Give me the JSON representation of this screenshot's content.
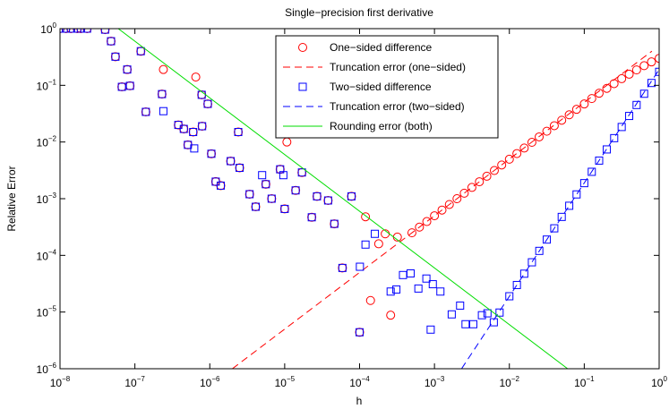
{
  "chart_data": {
    "type": "scatter",
    "title": "Single−precision first derivative",
    "xlabel": "h",
    "ylabel": "Relative Error",
    "xscale": "log",
    "yscale": "log",
    "grid": false,
    "legend": "north",
    "xlim": [
      1e-08,
      1
    ],
    "ylim": [
      1e-06,
      1
    ],
    "xticks": [
      {
        "value": 1e-08,
        "label": "10^-8"
      },
      {
        "value": 1e-07,
        "label": "10^-7"
      },
      {
        "value": 1e-06,
        "label": "10^-6"
      },
      {
        "value": 1e-05,
        "label": "10^-5"
      },
      {
        "value": 0.0001,
        "label": "10^-4"
      },
      {
        "value": 0.001,
        "label": "10^-3"
      },
      {
        "value": 0.01,
        "label": "10^-2"
      },
      {
        "value": 0.1,
        "label": "10^-1"
      },
      {
        "value": 1,
        "label": "10^0"
      }
    ],
    "yticks": [
      {
        "value": 1e-06,
        "label": "10^-6"
      },
      {
        "value": 1e-05,
        "label": "10^-5"
      },
      {
        "value": 0.0001,
        "label": "10^-4"
      },
      {
        "value": 0.001,
        "label": "10^-3"
      },
      {
        "value": 0.01,
        "label": "10^-2"
      },
      {
        "value": 0.1,
        "label": "10^-1"
      },
      {
        "value": 1,
        "label": "10^0"
      }
    ],
    "series": [
      {
        "name": "One−sided difference",
        "color": "#ff0000",
        "style": "circle",
        "x": [
          1e-08,
          1.2e-08,
          1.4e-08,
          1.7e-08,
          1.9e-08,
          2.3e-08,
          4e-08,
          4.8e-08,
          5.5e-08,
          6.7e-08,
          7.9e-08,
          8.6e-08,
          1.2e-07,
          1.4e-07,
          2.3e-07,
          2.4e-07,
          3.8e-07,
          4.5e-07,
          5.1e-07,
          6e-07,
          6.5e-07,
          7.8e-07,
          7.9e-07,
          9.4e-07,
          1.05e-06,
          1.2e-06,
          1.4e-06,
          1.9e-06,
          2.4e-06,
          2.5e-06,
          3.4e-06,
          4.1e-06,
          5.6e-06,
          6.7e-06,
          8.7e-06,
          1e-05,
          1.07e-05,
          1.4e-05,
          1.7e-05,
          2.3e-05,
          2.7e-05,
          3.8e-05,
          4.6e-05,
          5.9e-05,
          7.8e-05,
          0.0001,
          0.00012,
          0.00014,
          0.00018,
          0.00022,
          0.00026,
          0.00032,
          0.0005,
          0.00063,
          0.00079,
          0.001,
          0.00126,
          0.00158,
          0.002,
          0.0025,
          0.00316,
          0.00398,
          0.005,
          0.0063,
          0.0079,
          0.01,
          0.0126,
          0.0158,
          0.02,
          0.025,
          0.0316,
          0.0398,
          0.05,
          0.063,
          0.079,
          0.1,
          0.126,
          0.158,
          0.2,
          0.25,
          0.316,
          0.398,
          0.5,
          0.63,
          0.79,
          1
        ],
        "values": [
          1,
          1,
          1,
          1,
          1,
          1,
          0.96,
          0.6,
          0.32,
          0.094,
          0.19,
          0.098,
          0.4,
          0.034,
          0.07,
          0.19,
          0.02,
          0.017,
          0.0089,
          0.015,
          0.14,
          0.068,
          0.019,
          0.047,
          0.0062,
          0.002,
          0.0017,
          0.0046,
          0.015,
          0.0035,
          0.0012,
          0.00072,
          0.0018,
          0.001,
          0.0033,
          0.00066,
          0.01,
          0.0014,
          0.0029,
          0.00047,
          0.0011,
          0.00093,
          0.00036,
          6e-05,
          0.0011,
          4.4e-06,
          0.00048,
          1.6e-05,
          0.00016,
          0.00024,
          8.8e-06,
          0.00021,
          0.00025,
          0.000315,
          0.000395,
          0.0005,
          0.00063,
          0.00079,
          0.001,
          0.00125,
          0.00158,
          0.00199,
          0.00249,
          0.00314,
          0.00393,
          0.00497,
          0.00625,
          0.00782,
          0.00987,
          0.0123,
          0.0155,
          0.0194,
          0.0242,
          0.0302,
          0.0377,
          0.0469,
          0.0584,
          0.0725,
          0.0884,
          0.107,
          0.131,
          0.157,
          0.187,
          0.222,
          0.259,
          0.299
        ]
      },
      {
        "name": "Truncation error (one−sided)",
        "color": "#ff0000",
        "style": "dashed",
        "x": [
          2e-06,
          0.8
        ],
        "values": [
          1e-06,
          0.4
        ]
      },
      {
        "name": "Two−sided difference",
        "color": "#0000ff",
        "style": "square",
        "x": [
          1e-08,
          1.2e-08,
          1.4e-08,
          1.7e-08,
          1.9e-08,
          2.3e-08,
          4e-08,
          4.8e-08,
          5.5e-08,
          6.7e-08,
          7.9e-08,
          8.6e-08,
          1.2e-07,
          1.4e-07,
          2.3e-07,
          2.4e-07,
          3.8e-07,
          4.5e-07,
          5.1e-07,
          6e-07,
          6.2e-07,
          7.8e-07,
          7.9e-07,
          9.4e-07,
          1.05e-06,
          1.2e-06,
          1.4e-06,
          1.9e-06,
          2.4e-06,
          2.5e-06,
          3.4e-06,
          4.1e-06,
          5e-06,
          5.6e-06,
          6.7e-06,
          8.7e-06,
          9.6e-06,
          1e-05,
          1.4e-05,
          1.7e-05,
          2.3e-05,
          2.7e-05,
          3.8e-05,
          4.6e-05,
          5.9e-05,
          7.8e-05,
          0.0001,
          0.000101,
          0.00012,
          0.00016,
          0.00026,
          0.00031,
          0.00038,
          0.00048,
          0.00061,
          0.00078,
          0.00089,
          0.00095,
          0.0012,
          0.0017,
          0.0022,
          0.0026,
          0.0033,
          0.0043,
          0.0051,
          0.0062,
          0.0074,
          0.01,
          0.0126,
          0.0158,
          0.02,
          0.0251,
          0.0316,
          0.0398,
          0.05,
          0.063,
          0.079,
          0.1,
          0.126,
          0.158,
          0.2,
          0.251,
          0.316,
          0.398,
          0.5,
          0.63,
          0.79,
          1
        ],
        "values": [
          1,
          1,
          1,
          1,
          1,
          1,
          0.96,
          0.6,
          0.32,
          0.094,
          0.19,
          0.098,
          0.4,
          0.034,
          0.07,
          0.035,
          0.02,
          0.017,
          0.0089,
          0.015,
          0.0077,
          0.068,
          0.019,
          0.047,
          0.0062,
          0.002,
          0.0017,
          0.0046,
          0.015,
          0.0035,
          0.0012,
          0.00072,
          0.0026,
          0.0018,
          0.001,
          0.0033,
          0.0026,
          0.00066,
          0.0014,
          0.0029,
          0.00047,
          0.0011,
          0.00093,
          0.00036,
          6e-05,
          0.0011,
          4.4e-06,
          6.3e-05,
          0.000155,
          0.00024,
          2.3e-05,
          2.5e-05,
          4.5e-05,
          4.8e-05,
          2.6e-05,
          3.9e-05,
          4.9e-06,
          3.1e-05,
          2.3e-05,
          9.1e-06,
          1.3e-05,
          6.1e-06,
          6.1e-06,
          8.8e-06,
          9.5e-06,
          6.6e-06,
          9.8e-06,
          1.9e-05,
          3e-05,
          4.75e-05,
          7.55e-05,
          0.00012,
          0.00019,
          0.0003,
          0.000477,
          0.00075,
          0.00119,
          0.00188,
          0.00298,
          0.0047,
          0.0074,
          0.0117,
          0.0184,
          0.0288,
          0.045,
          0.071,
          0.11,
          0.173
        ]
      },
      {
        "name": "Truncation error (two−sided)",
        "color": "#0000ff",
        "style": "dashed",
        "x": [
          0.0023,
          1
        ],
        "values": [
          1e-06,
          0.19
        ]
      },
      {
        "name": "Rounding error (both)",
        "color": "#00dd00",
        "style": "solid",
        "x": [
          6e-08,
          0.06
        ],
        "values": [
          1,
          1e-06
        ]
      }
    ]
  }
}
